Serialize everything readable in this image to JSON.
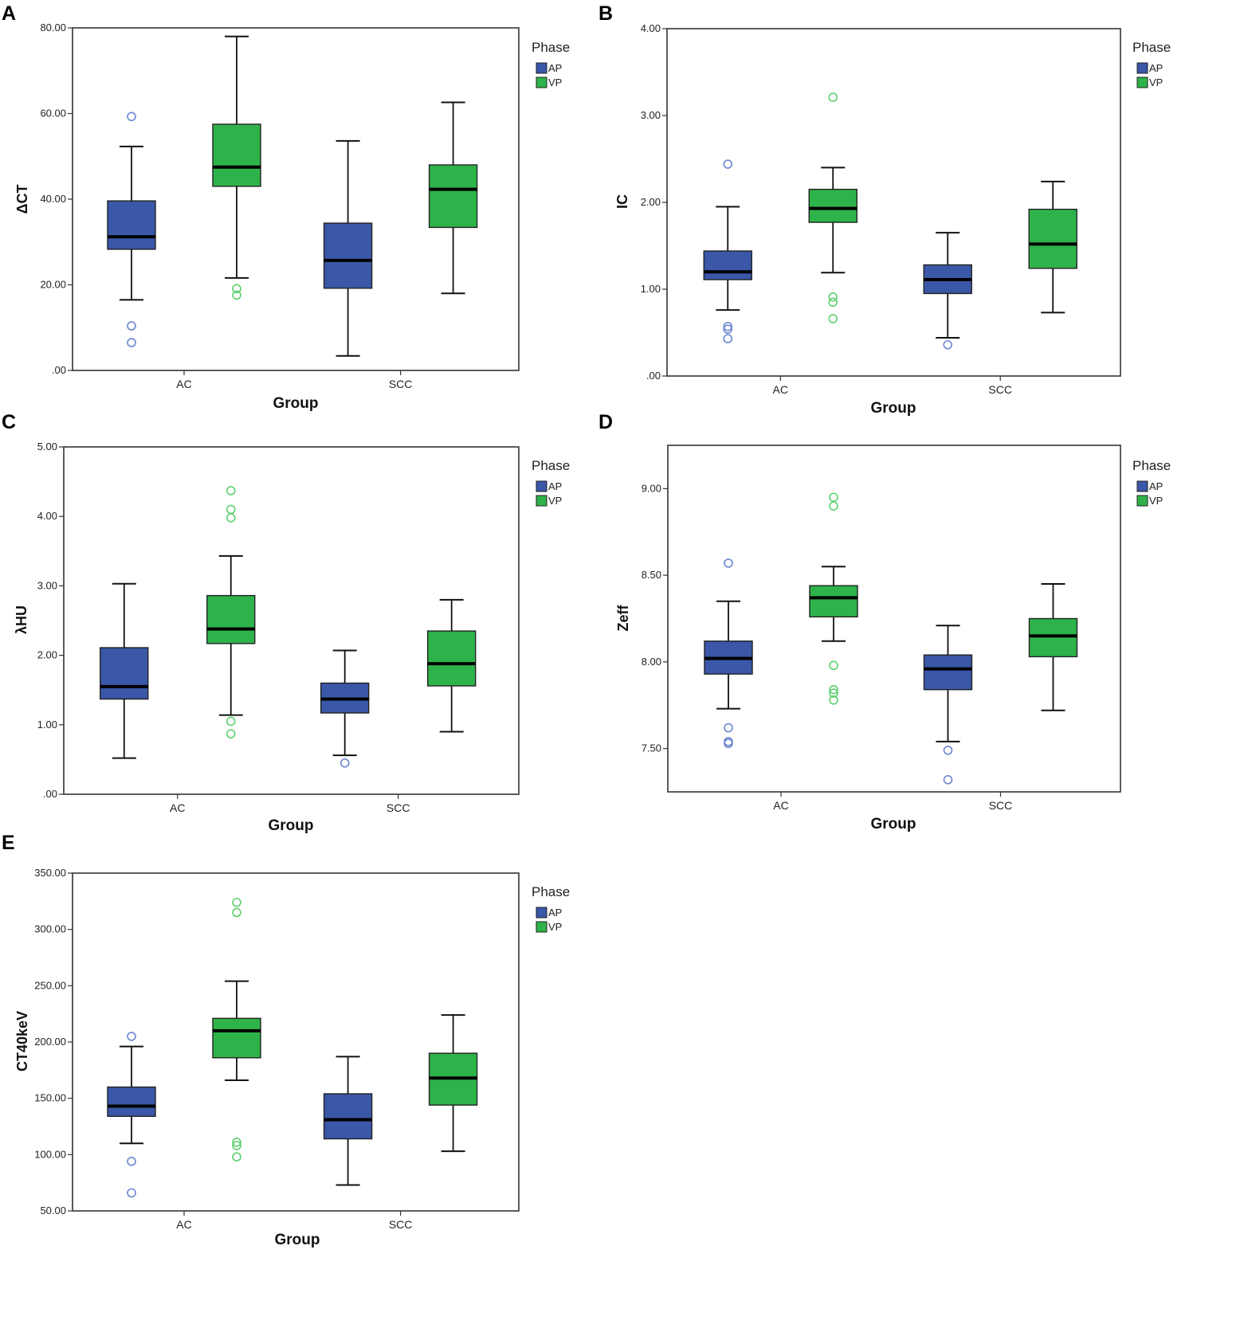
{
  "colors": {
    "AP": "#3a57a8",
    "VP": "#2eb34a",
    "AP_outlier": "#6b86d0",
    "VP_outlier": "#5fcf6f"
  },
  "chart_data": [
    {
      "panel": "A",
      "type": "box",
      "xlabel": "Group",
      "ylabel": "ΔCT",
      "yticks": [
        "80.00",
        "60.00",
        "40.00",
        "20.00",
        ".00"
      ],
      "ylim": [
        0,
        80
      ],
      "categories": [
        "AC",
        "SCC"
      ],
      "legend": {
        "title": "Phase",
        "items": [
          "AP",
          "VP"
        ]
      },
      "series": [
        {
          "name": "AP",
          "boxes": [
            {
              "whislo": 16.5,
              "q1": 28.3,
              "med": 31.2,
              "q3": 39.6,
              "whishi": 52.3,
              "fliers": [
                59.3,
                10.4,
                6.5
              ]
            },
            {
              "whislo": 3.4,
              "q1": 19.2,
              "med": 25.7,
              "q3": 34.4,
              "whishi": 53.6,
              "fliers": []
            }
          ]
        },
        {
          "name": "VP",
          "boxes": [
            {
              "whislo": 21.6,
              "q1": 43.0,
              "med": 47.5,
              "q3": 57.5,
              "whishi": 78.0,
              "fliers": [
                19.1,
                17.6
              ]
            },
            {
              "whislo": 18.0,
              "q1": 33.4,
              "med": 42.3,
              "q3": 48.0,
              "whishi": 62.6,
              "fliers": []
            }
          ]
        }
      ]
    },
    {
      "panel": "B",
      "type": "box",
      "xlabel": "Group",
      "ylabel": "IC",
      "yticks": [
        "4.00",
        "3.00",
        "2.00",
        "1.00",
        ".00"
      ],
      "ylim": [
        0,
        4
      ],
      "categories": [
        "AC",
        "SCC"
      ],
      "legend": {
        "title": "Phase",
        "items": [
          "AP",
          "VP"
        ]
      },
      "series": [
        {
          "name": "AP",
          "boxes": [
            {
              "whislo": 0.76,
              "q1": 1.11,
              "med": 1.2,
              "q3": 1.44,
              "whishi": 1.95,
              "fliers": [
                2.44,
                0.57,
                0.54,
                0.43
              ]
            },
            {
              "whislo": 0.44,
              "q1": 0.95,
              "med": 1.11,
              "q3": 1.28,
              "whishi": 1.65,
              "fliers": [
                0.36
              ]
            }
          ]
        },
        {
          "name": "VP",
          "boxes": [
            {
              "whislo": 1.19,
              "q1": 1.77,
              "med": 1.93,
              "q3": 2.15,
              "whishi": 2.4,
              "fliers": [
                3.21,
                0.91,
                0.85,
                0.66
              ]
            },
            {
              "whislo": 0.73,
              "q1": 1.24,
              "med": 1.52,
              "q3": 1.92,
              "whishi": 2.24,
              "fliers": []
            }
          ]
        }
      ]
    },
    {
      "panel": "C",
      "type": "box",
      "xlabel": "Group",
      "ylabel": "λHU",
      "yticks": [
        "5.00",
        "4.00",
        "3.00",
        "2.00",
        "1.00",
        ".00"
      ],
      "ylim": [
        0,
        5
      ],
      "categories": [
        "AC",
        "SCC"
      ],
      "legend": {
        "title": "Phase",
        "items": [
          "AP",
          "VP"
        ]
      },
      "series": [
        {
          "name": "AP",
          "boxes": [
            {
              "whislo": 0.52,
              "q1": 1.37,
              "med": 1.55,
              "q3": 2.11,
              "whishi": 3.03,
              "fliers": []
            },
            {
              "whislo": 0.56,
              "q1": 1.17,
              "med": 1.37,
              "q3": 1.6,
              "whishi": 2.07,
              "fliers": [
                0.45
              ]
            }
          ]
        },
        {
          "name": "VP",
          "boxes": [
            {
              "whislo": 1.14,
              "q1": 2.17,
              "med": 2.38,
              "q3": 2.86,
              "whishi": 3.43,
              "fliers": [
                4.37,
                4.1,
                3.98,
                1.05,
                0.87
              ]
            },
            {
              "whislo": 0.9,
              "q1": 1.56,
              "med": 1.88,
              "q3": 2.35,
              "whishi": 2.8,
              "fliers": []
            }
          ]
        }
      ]
    },
    {
      "panel": "D",
      "type": "box",
      "xlabel": "Group",
      "ylabel": "Zeff",
      "yticks": [
        "9.00",
        "8.50",
        "8.00",
        "7.50"
      ],
      "ylim": [
        7.25,
        9.25
      ],
      "categories": [
        "AC",
        "SCC"
      ],
      "legend": {
        "title": "Phase",
        "items": [
          "AP",
          "VP"
        ]
      },
      "series": [
        {
          "name": "AP",
          "boxes": [
            {
              "whislo": 7.73,
              "q1": 7.93,
              "med": 8.02,
              "q3": 8.12,
              "whishi": 8.35,
              "fliers": [
                8.57,
                7.62,
                7.54,
                7.53
              ]
            },
            {
              "whislo": 7.54,
              "q1": 7.84,
              "med": 7.96,
              "q3": 8.04,
              "whishi": 8.21,
              "fliers": [
                7.49,
                7.32
              ]
            }
          ]
        },
        {
          "name": "VP",
          "boxes": [
            {
              "whislo": 8.12,
              "q1": 8.26,
              "med": 8.37,
              "q3": 8.44,
              "whishi": 8.55,
              "fliers": [
                8.95,
                8.9,
                7.98,
                7.84,
                7.82,
                7.78
              ]
            },
            {
              "whislo": 7.72,
              "q1": 8.03,
              "med": 8.15,
              "q3": 8.25,
              "whishi": 8.45,
              "fliers": []
            }
          ]
        }
      ]
    },
    {
      "panel": "E",
      "type": "box",
      "xlabel": "Group",
      "ylabel": "CT40keV",
      "yticks": [
        "350.00",
        "300.00",
        "250.00",
        "200.00",
        "150.00",
        "100.00",
        "50.00"
      ],
      "ylim": [
        50,
        350
      ],
      "categories": [
        "AC",
        "SCC"
      ],
      "legend": {
        "title": "Phase",
        "items": [
          "AP",
          "VP"
        ]
      },
      "series": [
        {
          "name": "AP",
          "boxes": [
            {
              "whislo": 110,
              "q1": 134,
              "med": 143,
              "q3": 160,
              "whishi": 196,
              "fliers": [
                205,
                94,
                66
              ]
            },
            {
              "whislo": 73,
              "q1": 114,
              "med": 131,
              "q3": 154,
              "whishi": 187,
              "fliers": []
            }
          ]
        },
        {
          "name": "VP",
          "boxes": [
            {
              "whislo": 166,
              "q1": 186,
              "med": 210,
              "q3": 221,
              "whishi": 254,
              "fliers": [
                324,
                315,
                111,
                108,
                98
              ]
            },
            {
              "whislo": 103,
              "q1": 144,
              "med": 168,
              "q3": 190,
              "whishi": 224,
              "fliers": []
            }
          ]
        }
      ]
    }
  ]
}
